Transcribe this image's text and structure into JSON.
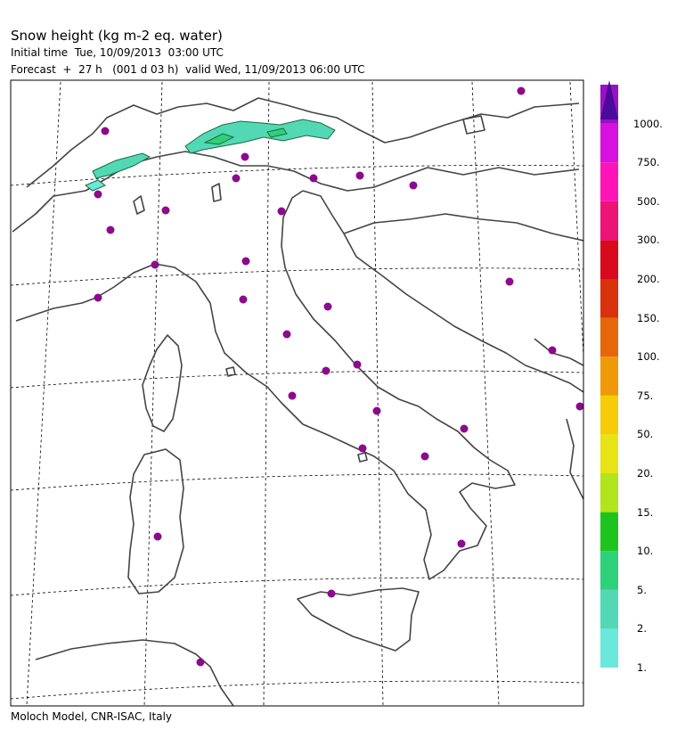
{
  "header": {
    "title": "Snow height (kg m-2 eq. water)",
    "initial": "Initial time  Tue, 10/09/2013  03:00 UTC",
    "forecast": "Forecast  +  27 h   (001 d 03 h)  valid Wed, 11/09/2013 06:00 UTC"
  },
  "footer": "Moloch Model, CNR-ISAC, Italy",
  "legend": {
    "classes": [
      {
        "label": "1.",
        "color": "#6ae8dc"
      },
      {
        "label": "2.",
        "color": "#52d8b4"
      },
      {
        "label": "5.",
        "color": "#2ed07a"
      },
      {
        "label": "10.",
        "color": "#1ec41e"
      },
      {
        "label": "15.",
        "color": "#b2e41c"
      },
      {
        "label": "20.",
        "color": "#e6e414"
      },
      {
        "label": "50.",
        "color": "#f6cc08"
      },
      {
        "label": "75.",
        "color": "#ee9a08"
      },
      {
        "label": "100.",
        "color": "#e6660a"
      },
      {
        "label": "150.",
        "color": "#d8320c"
      },
      {
        "label": "200.",
        "color": "#d80a1e"
      },
      {
        "label": "300.",
        "color": "#ec1476"
      },
      {
        "label": "500.",
        "color": "#ff14b8"
      },
      {
        "label": "750.",
        "color": "#d812de"
      },
      {
        "label": "1000.",
        "color": "#9a10c4"
      }
    ],
    "top_color": "#4c0a9a"
  },
  "map": {
    "station_color": "#8c0a8c",
    "coast_color": "#444444",
    "grid": "dashed"
  }
}
